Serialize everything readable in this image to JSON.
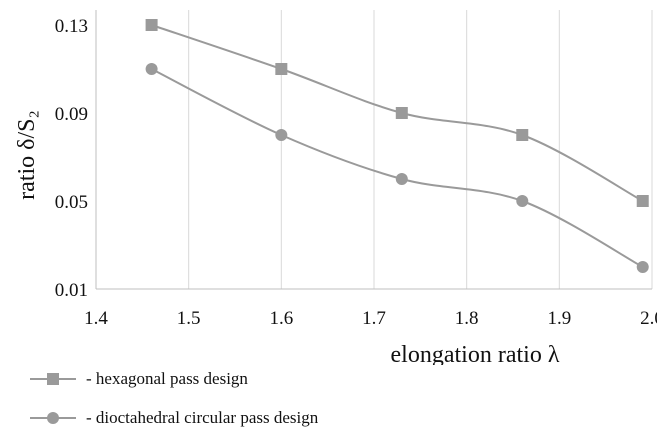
{
  "chart_data": {
    "type": "line",
    "xlabel": "elongation ratio λ",
    "ylabel": "ratio δ/S₂",
    "xlim": [
      1.4,
      2.0
    ],
    "ylim": [
      0.01,
      0.13
    ],
    "x_ticks": [
      "1.4",
      "1.5",
      "1.6",
      "1.7",
      "1.8",
      "1.9",
      "2.0"
    ],
    "y_ticks": [
      "0.13",
      "0.09",
      "0.05",
      "0.01"
    ],
    "grid": "vertical",
    "legend_position": "bottom-left",
    "series": [
      {
        "name": "- hexagonal pass design",
        "marker": "square",
        "color": "#9a9a9a",
        "x": [
          1.46,
          1.6,
          1.73,
          1.86,
          1.99
        ],
        "y": [
          0.13,
          0.11,
          0.09,
          0.08,
          0.05
        ]
      },
      {
        "name": "- dioctahedral circular pass design",
        "marker": "circle",
        "color": "#9a9a9a",
        "x": [
          1.46,
          1.6,
          1.73,
          1.86,
          1.99
        ],
        "y": [
          0.11,
          0.08,
          0.06,
          0.05,
          0.02
        ]
      }
    ]
  }
}
